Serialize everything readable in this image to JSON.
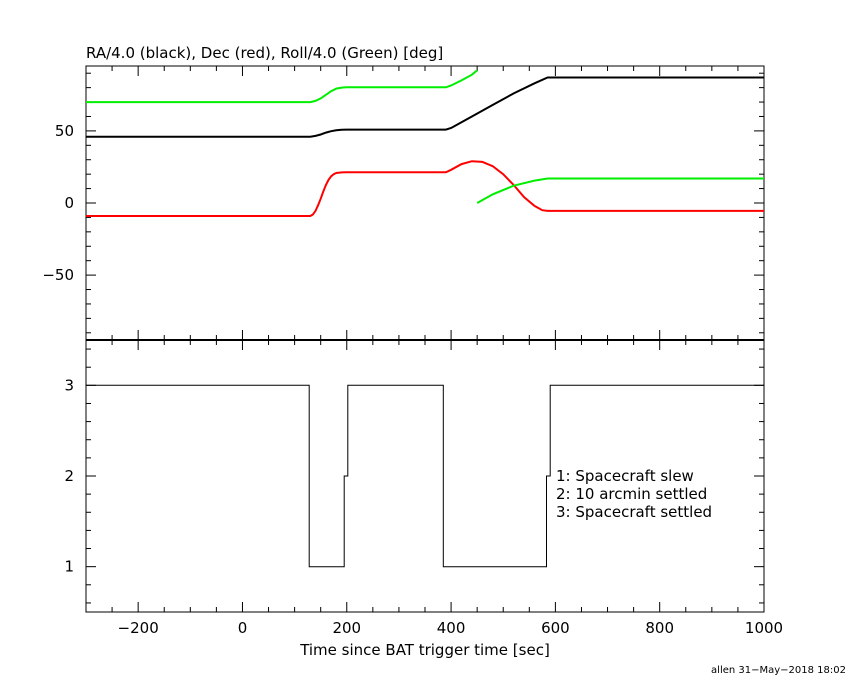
{
  "chart_data": [
    {
      "type": "line",
      "title": "RA/4.0 (black), Dec (red), Roll/4.0 (Green) [deg]",
      "xlim": [
        -300,
        1000
      ],
      "ylim": [
        -95,
        95
      ],
      "yticks": [
        -50,
        0,
        50
      ],
      "ytick_labels": [
        "−50",
        "0",
        "50"
      ],
      "series": [
        {
          "name": "RA/4.0",
          "color": "#000000",
          "x": [
            -300,
            130,
            140,
            150,
            160,
            170,
            180,
            190,
            200,
            300,
            390,
            400,
            440,
            480,
            520,
            560,
            585,
            1000
          ],
          "y": [
            46,
            46,
            46.5,
            47.5,
            48.8,
            49.8,
            50.4,
            50.8,
            50.9,
            50.9,
            50.9,
            52,
            60,
            68,
            76,
            83,
            87,
            87
          ]
        },
        {
          "name": "Dec",
          "color": "#ff0000",
          "x": [
            -300,
            130,
            135,
            140,
            145,
            150,
            155,
            160,
            165,
            170,
            175,
            180,
            190,
            200,
            300,
            390,
            400,
            420,
            440,
            460,
            480,
            500,
            520,
            540,
            560,
            575,
            585,
            1000
          ],
          "y": [
            -9,
            -9,
            -8,
            -5.5,
            -1.5,
            3,
            8,
            12.5,
            16,
            18.5,
            20,
            20.8,
            21.2,
            21.3,
            21.3,
            21.3,
            23,
            27,
            29,
            28.5,
            25.5,
            20,
            12.5,
            4,
            -2,
            -5,
            -5.5,
            -5.5
          ]
        },
        {
          "name": "Roll/4.0",
          "color": "#00ee00",
          "x": [
            -300,
            130,
            140,
            150,
            160,
            170,
            180,
            190,
            200,
            300,
            390,
            400,
            420,
            440,
            450
          ],
          "y": [
            70,
            70,
            70.8,
            72.5,
            75,
            77.5,
            79.3,
            80,
            80.2,
            80.2,
            80.2,
            81.5,
            85,
            89,
            92
          ]
        },
        {
          "name": "Roll/4.0 (wrapped)",
          "color": "#00ee00",
          "x": [
            450,
            480,
            520,
            560,
            585,
            1000
          ],
          "y": [
            0,
            6,
            12,
            15.5,
            17,
            17
          ]
        }
      ]
    },
    {
      "type": "step",
      "xlim": [
        -300,
        1000
      ],
      "ylim": [
        0.5,
        3.5
      ],
      "yticks": [
        1,
        2,
        3
      ],
      "ytick_labels": [
        "1",
        "2",
        "3"
      ],
      "xticks": [
        -200,
        0,
        200,
        400,
        600,
        800,
        1000
      ],
      "xtick_labels": [
        "−200",
        "0",
        "200",
        "400",
        "600",
        "800",
        "1000"
      ],
      "xlabel": "Time since BAT trigger time [sec]",
      "x": [
        -300,
        128,
        128,
        195,
        195,
        202,
        202,
        385,
        385,
        583,
        583,
        590,
        590,
        1000
      ],
      "y": [
        3,
        3,
        1,
        1,
        2,
        2,
        3,
        3,
        1,
        1,
        2,
        2,
        3,
        3
      ],
      "legend": [
        "1: Spacecraft slew",
        "2: 10 arcmin settled",
        "3: Spacecraft settled"
      ]
    }
  ],
  "footer": "allen 31−May−2018 18:02"
}
